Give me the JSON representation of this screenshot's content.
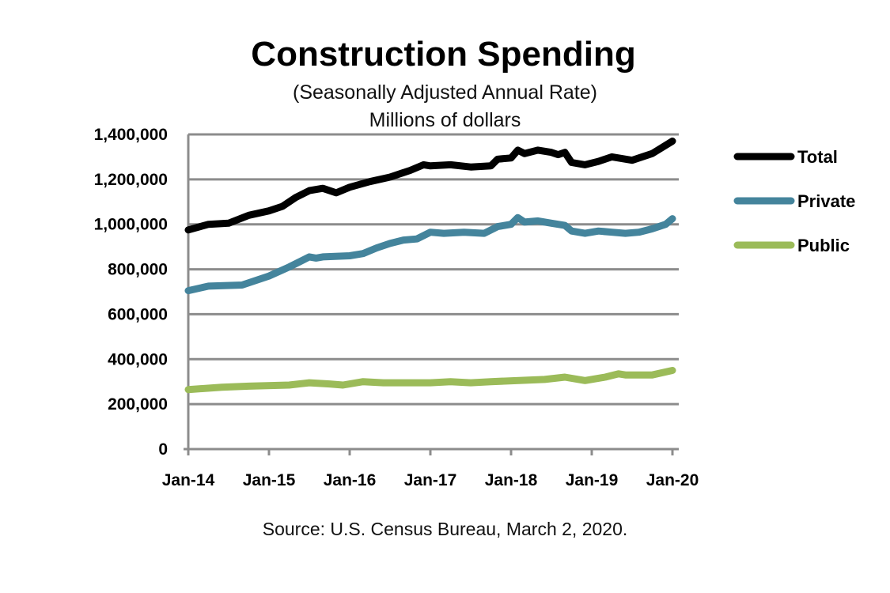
{
  "chart_data": {
    "type": "line",
    "title": "Construction Spending",
    "subtitle": "(Seasonally Adjusted Annual Rate)",
    "units": "Millions of dollars",
    "source": "Source: U.S. Census Bureau, March 2, 2020.",
    "xlabel": "",
    "ylabel": "",
    "ylim": [
      0,
      1400000
    ],
    "xlim": [
      "2014-01",
      "2020-01"
    ],
    "yticks": [
      "0",
      "200,000",
      "400,000",
      "600,000",
      "800,000",
      "1,000,000",
      "1,200,000",
      "1,400,000"
    ],
    "xticks": [
      {
        "label": "Jan-14",
        "x": "2014-01"
      },
      {
        "label": "Jan-15",
        "x": "2015-01"
      },
      {
        "label": "Jan-16",
        "x": "2016-01"
      },
      {
        "label": "Jan-17",
        "x": "2017-01"
      },
      {
        "label": "Jan-18",
        "x": "2018-01"
      },
      {
        "label": "Jan-19",
        "x": "2019-01"
      },
      {
        "label": "Jan-20",
        "x": "2020-01"
      }
    ],
    "grid": true,
    "legend": "right",
    "series": [
      {
        "name": "Total",
        "color": "#000000",
        "points": [
          [
            "2014-01",
            975000
          ],
          [
            "2014-04",
            1000000
          ],
          [
            "2014-07",
            1005000
          ],
          [
            "2014-10",
            1040000
          ],
          [
            "2015-01",
            1060000
          ],
          [
            "2015-03",
            1080000
          ],
          [
            "2015-05",
            1120000
          ],
          [
            "2015-07",
            1150000
          ],
          [
            "2015-09",
            1160000
          ],
          [
            "2015-11",
            1140000
          ],
          [
            "2016-01",
            1165000
          ],
          [
            "2016-04",
            1190000
          ],
          [
            "2016-07",
            1210000
          ],
          [
            "2016-10",
            1240000
          ],
          [
            "2016-12",
            1265000
          ],
          [
            "2017-01",
            1260000
          ],
          [
            "2017-04",
            1265000
          ],
          [
            "2017-07",
            1255000
          ],
          [
            "2017-10",
            1260000
          ],
          [
            "2017-11",
            1290000
          ],
          [
            "2018-01",
            1295000
          ],
          [
            "2018-02",
            1330000
          ],
          [
            "2018-03",
            1315000
          ],
          [
            "2018-05",
            1330000
          ],
          [
            "2018-07",
            1320000
          ],
          [
            "2018-08",
            1310000
          ],
          [
            "2018-09",
            1320000
          ],
          [
            "2018-10",
            1275000
          ],
          [
            "2018-12",
            1265000
          ],
          [
            "2019-02",
            1280000
          ],
          [
            "2019-04",
            1300000
          ],
          [
            "2019-07",
            1285000
          ],
          [
            "2019-10",
            1315000
          ],
          [
            "2020-01",
            1370000
          ]
        ]
      },
      {
        "name": "Private",
        "color": "#44849c",
        "points": [
          [
            "2014-01",
            705000
          ],
          [
            "2014-04",
            725000
          ],
          [
            "2014-09",
            730000
          ],
          [
            "2015-01",
            770000
          ],
          [
            "2015-04",
            810000
          ],
          [
            "2015-07",
            855000
          ],
          [
            "2015-08",
            850000
          ],
          [
            "2015-09",
            855000
          ],
          [
            "2016-01",
            860000
          ],
          [
            "2016-03",
            870000
          ],
          [
            "2016-05",
            895000
          ],
          [
            "2016-07",
            915000
          ],
          [
            "2016-09",
            930000
          ],
          [
            "2016-11",
            935000
          ],
          [
            "2017-01",
            965000
          ],
          [
            "2017-03",
            960000
          ],
          [
            "2017-06",
            965000
          ],
          [
            "2017-09",
            960000
          ],
          [
            "2017-11",
            990000
          ],
          [
            "2018-01",
            1000000
          ],
          [
            "2018-02",
            1030000
          ],
          [
            "2018-03",
            1010000
          ],
          [
            "2018-05",
            1015000
          ],
          [
            "2018-07",
            1005000
          ],
          [
            "2018-09",
            995000
          ],
          [
            "2018-10",
            970000
          ],
          [
            "2018-12",
            960000
          ],
          [
            "2019-02",
            970000
          ],
          [
            "2019-04",
            965000
          ],
          [
            "2019-06",
            960000
          ],
          [
            "2019-08",
            965000
          ],
          [
            "2019-10",
            980000
          ],
          [
            "2019-12",
            1000000
          ],
          [
            "2020-01",
            1025000
          ]
        ]
      },
      {
        "name": "Public",
        "color": "#9bbb59",
        "points": [
          [
            "2014-01",
            265000
          ],
          [
            "2014-06",
            275000
          ],
          [
            "2014-10",
            280000
          ],
          [
            "2015-04",
            285000
          ],
          [
            "2015-07",
            295000
          ],
          [
            "2015-10",
            290000
          ],
          [
            "2015-12",
            285000
          ],
          [
            "2016-03",
            300000
          ],
          [
            "2016-06",
            295000
          ],
          [
            "2016-09",
            295000
          ],
          [
            "2017-01",
            295000
          ],
          [
            "2017-04",
            300000
          ],
          [
            "2017-07",
            295000
          ],
          [
            "2017-10",
            300000
          ],
          [
            "2018-06",
            310000
          ],
          [
            "2018-09",
            320000
          ],
          [
            "2018-12",
            305000
          ],
          [
            "2019-03",
            320000
          ],
          [
            "2019-05",
            335000
          ],
          [
            "2019-06",
            330000
          ],
          [
            "2019-10",
            330000
          ],
          [
            "2020-01",
            350000
          ]
        ]
      }
    ]
  }
}
